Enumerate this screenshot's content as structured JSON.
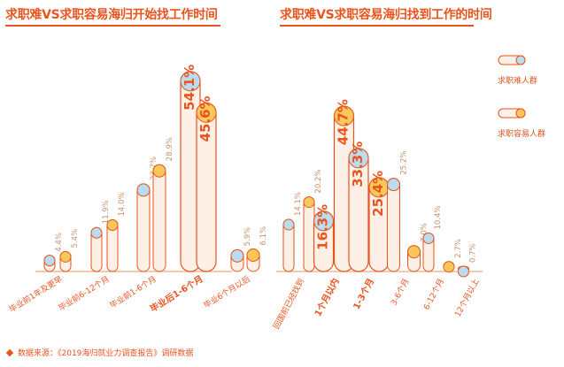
{
  "chart_data": [
    {
      "type": "bar",
      "title": "求职难VS求职容易海归开始找工作时间",
      "categories": [
        "毕业前1年及更早",
        "毕业前6-12个月",
        "毕业前1-6个月",
        "毕业后1-6个月",
        "毕业6个月以后"
      ],
      "highlight_category": "毕业后1-6个月",
      "series": [
        {
          "name": "求职难人群",
          "values": [
            4.4,
            11.9,
            23.7,
            54.1,
            5.9
          ],
          "labels": [
            "4.4%",
            "11.9%",
            "23.7%",
            "54.1%",
            "5.9%"
          ]
        },
        {
          "name": "求职容易人群",
          "values": [
            5.4,
            14.0,
            28.9,
            45.6,
            6.1
          ],
          "labels": [
            "5.4%",
            "14.0%",
            "28.9%",
            "45.6%",
            "6.1%"
          ]
        }
      ]
    },
    {
      "type": "bar",
      "title": "求职难VS求职容易海归找到工作的时间",
      "categories": [
        "回国前已经找到",
        "1个月以内",
        "1-3个月",
        "3-6个月",
        "6-12个月",
        "12个月以上"
      ],
      "highlight_categories": [
        "1个月以内",
        "1-3个月"
      ],
      "series": [
        {
          "name": "求职难人群",
          "values": [
            14.1,
            16.3,
            33.3,
            25.2,
            10.4,
            0.7
          ],
          "labels": [
            "14.1%",
            "16.3%",
            "33.3%",
            "25.2%",
            "10.4%",
            "0.7%"
          ]
        },
        {
          "name": "求职容易人群",
          "values": [
            20.2,
            44.7,
            25.4,
            7.0,
            2.7,
            0
          ],
          "labels": [
            "20.2%",
            "44.7%",
            "25.4%",
            "7.0%",
            "2.7%",
            ""
          ]
        }
      ]
    }
  ],
  "legend": {
    "items": [
      "求职难人群",
      "求职容易人群"
    ],
    "placement": "right"
  },
  "source_text": "数据来源：《2019海归就业力调查报告》调研数据",
  "colors": {
    "accent": "#e8541e",
    "bar_fill": "#fdf0e6",
    "cap_hard": "#b9dcf1",
    "cap_easy": "#f9c85a",
    "baseline": "#f2b88e",
    "label": "#c9906a"
  }
}
